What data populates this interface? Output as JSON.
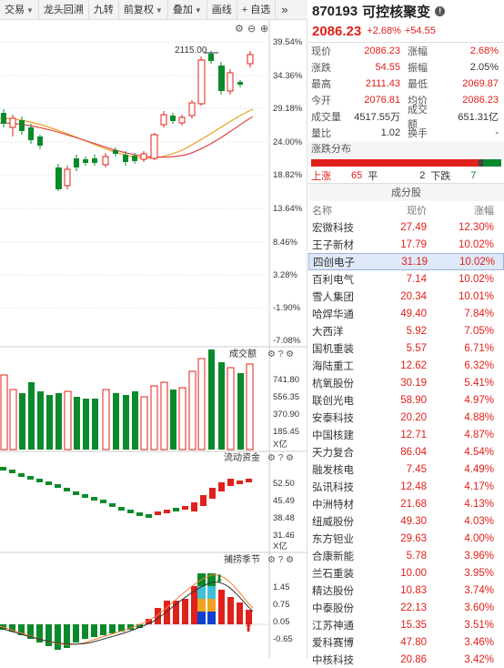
{
  "toolbar": {
    "items": [
      "交易",
      "龙头回溯",
      "九转",
      "前复权",
      "叠加",
      "画线",
      "自选"
    ],
    "more": "»"
  },
  "kline": {
    "high_label": "2115.00",
    "axis_labels": [
      "39.54%",
      "34.36%",
      "29.18%",
      "24.00%",
      "18.82%",
      "13.64%",
      "8.46%",
      "3.28%",
      "-1.90%",
      "-7.08%"
    ]
  },
  "volume": {
    "title": "成交额",
    "axis_labels": [
      "741.80",
      "556.35",
      "370.90",
      "185.45"
    ],
    "unit": "X亿"
  },
  "fund": {
    "title": "流动资金",
    "axis_labels": [
      "52.50",
      "45.49",
      "38.48",
      "31.46"
    ],
    "unit": "X亿"
  },
  "catch": {
    "title": "捕捞季节",
    "axis_labels": [
      "1.45",
      "0.75",
      "0.05",
      "-0.65"
    ]
  },
  "quote": {
    "code": "870193",
    "name": "可控核聚变",
    "price": "2086.23",
    "change_pct": "+2.68%",
    "change": "+54.55",
    "rows": [
      {
        "k1": "现价",
        "v1": "2086.23",
        "k2": "涨幅",
        "v2": "2.68%",
        "c1": "red",
        "c2": "red"
      },
      {
        "k1": "涨跌",
        "v1": "54.55",
        "k2": "振幅",
        "v2": "2.05%",
        "c1": "red",
        "c2": ""
      },
      {
        "k1": "最高",
        "v1": "2111.43",
        "k2": "最低",
        "v2": "2069.87",
        "c1": "red",
        "c2": "red"
      },
      {
        "k1": "今开",
        "v1": "2076.81",
        "k2": "均价",
        "v2": "2086.23",
        "c1": "red",
        "c2": "red"
      },
      {
        "k1": "成交量",
        "v1": "4517.55万",
        "k2": "成交额",
        "v2": "651.31亿",
        "c1": "",
        "c2": ""
      },
      {
        "k1": "量比",
        "v1": "1.02",
        "k2": "换手",
        "v2": "-",
        "c1": "",
        "c2": ""
      }
    ]
  },
  "distribution": {
    "title": "涨跌分布",
    "up_label": "上涨",
    "up": "65",
    "flat_label": "平",
    "flat": "2",
    "down_label": "下跌",
    "down": "7",
    "up_color": "#e0201b",
    "flat_color": "#444444",
    "down_color": "#0a8a2a"
  },
  "components": {
    "title": "成分股",
    "headers": [
      "名称",
      "现价",
      "涨幅"
    ],
    "rows": [
      {
        "name": "宏微科技",
        "price": "27.49",
        "pct": "12.30%"
      },
      {
        "name": "王子新材",
        "price": "17.79",
        "pct": "10.02%"
      },
      {
        "name": "四创电子",
        "price": "31.19",
        "pct": "10.02%"
      },
      {
        "name": "百利电气",
        "price": "7.14",
        "pct": "10.02%"
      },
      {
        "name": "雪人集团",
        "price": "20.34",
        "pct": "10.01%"
      },
      {
        "name": "哈焊华通",
        "price": "49.40",
        "pct": "7.84%"
      },
      {
        "name": "大西洋",
        "price": "5.92",
        "pct": "7.05%"
      },
      {
        "name": "国机重装",
        "price": "5.57",
        "pct": "6.71%"
      },
      {
        "name": "海陆重工",
        "price": "12.62",
        "pct": "6.32%"
      },
      {
        "name": "杭氧股份",
        "price": "30.19",
        "pct": "5.41%"
      },
      {
        "name": "联创光电",
        "price": "58.90",
        "pct": "4.97%"
      },
      {
        "name": "安泰科技",
        "price": "20.20",
        "pct": "4.88%"
      },
      {
        "name": "中国核建",
        "price": "12.71",
        "pct": "4.87%"
      },
      {
        "name": "天力复合",
        "price": "86.04",
        "pct": "4.54%"
      },
      {
        "name": "融发核电",
        "price": "7.45",
        "pct": "4.49%"
      },
      {
        "name": "弘讯科技",
        "price": "12.48",
        "pct": "4.17%"
      },
      {
        "name": "中洲特材",
        "price": "21.68",
        "pct": "4.13%"
      },
      {
        "name": "纽威股份",
        "price": "49.30",
        "pct": "4.03%"
      },
      {
        "name": "东方钽业",
        "price": "29.63",
        "pct": "4.00%"
      },
      {
        "name": "合康新能",
        "price": "5.78",
        "pct": "3.96%"
      },
      {
        "name": "兰石重装",
        "price": "10.00",
        "pct": "3.95%"
      },
      {
        "name": "精达股份",
        "price": "10.83",
        "pct": "3.74%"
      },
      {
        "name": "中泰股份",
        "price": "22.13",
        "pct": "3.60%"
      },
      {
        "name": "江苏神通",
        "price": "15.35",
        "pct": "3.51%"
      },
      {
        "name": "爱科赛博",
        "price": "47.80",
        "pct": "3.46%"
      },
      {
        "name": "中核科技",
        "price": "20.86",
        "pct": "3.42%"
      }
    ]
  },
  "colors": {
    "up": "#e0201b",
    "down": "#0a8a2a",
    "accent": "#3b6fd4"
  }
}
